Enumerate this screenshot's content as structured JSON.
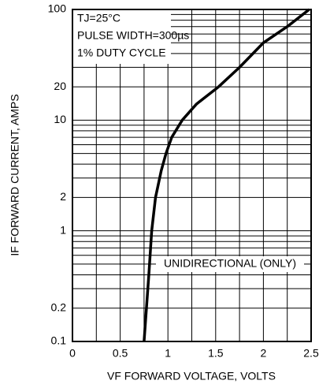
{
  "chart_data": {
    "type": "line",
    "log_y": true,
    "xlabel": "VF FORWARD VOLTAGE, VOLTS",
    "ylabel": "IF FORWARD CURRENT, AMPS",
    "annotations": [
      "TJ=25°C",
      "PULSE WIDTH=300µs",
      "1% DUTY CYCLE",
      "UNIDIRECTIONAL (ONLY)"
    ],
    "x": [
      0.75,
      0.8,
      0.83,
      0.87,
      0.93,
      0.98,
      1.04,
      1.15,
      1.3,
      1.53,
      1.75,
      2.0,
      2.25,
      2.48
    ],
    "values": [
      0.1,
      0.4,
      1,
      2,
      3.5,
      5,
      7,
      10,
      14,
      20,
      30,
      50,
      70,
      100
    ],
    "color": "#000000",
    "xlim": [
      0,
      2.5
    ],
    "ylim": [
      0.1,
      100
    ],
    "xticks": [
      0,
      0.5,
      1,
      1.5,
      2,
      2.5
    ],
    "yticks": [
      0.1,
      0.2,
      1,
      2,
      10,
      20,
      100
    ],
    "xgrid": [
      0,
      0.25,
      0.5,
      0.75,
      1,
      1.25,
      1.5,
      1.75,
      2,
      2.25,
      2.5
    ],
    "ygrid": [
      0.1,
      0.2,
      0.3,
      0.4,
      0.5,
      0.6,
      0.7,
      0.8,
      0.9,
      1,
      2,
      3,
      4,
      5,
      6,
      7,
      8,
      9,
      10,
      20,
      30,
      40,
      50,
      60,
      70,
      80,
      90,
      100
    ],
    "grid": true
  }
}
